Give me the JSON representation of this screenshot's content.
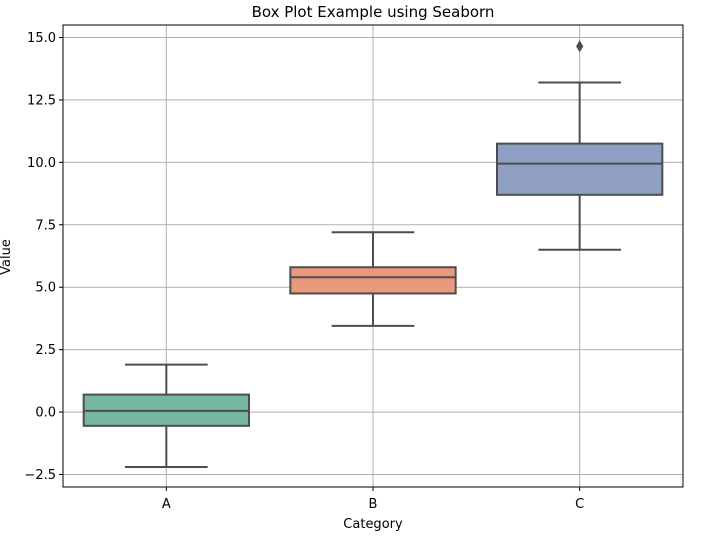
{
  "chart_data": {
    "type": "box",
    "title": "Box Plot Example using Seaborn",
    "xlabel": "Category",
    "ylabel": "Value",
    "categories": [
      "A",
      "B",
      "C"
    ],
    "ylim": [
      -3.0,
      15.5
    ],
    "yticks": [
      -2.5,
      0.0,
      2.5,
      5.0,
      7.5,
      10.0,
      12.5,
      15.0
    ],
    "ytick_labels": [
      "−2.5",
      "0.0",
      "2.5",
      "5.0",
      "7.5",
      "10.0",
      "12.5",
      "15.0"
    ],
    "grid": true,
    "boxes": [
      {
        "category": "A",
        "whisker_low": -2.2,
        "q1": -0.55,
        "median": 0.05,
        "q3": 0.7,
        "whisker_high": 1.9,
        "outliers": [],
        "color": "#77b8a0"
      },
      {
        "category": "B",
        "whisker_low": 3.45,
        "q1": 4.75,
        "median": 5.4,
        "q3": 5.8,
        "whisker_high": 7.2,
        "outliers": [],
        "color": "#e9997d"
      },
      {
        "category": "C",
        "whisker_low": 6.5,
        "q1": 8.7,
        "median": 9.95,
        "q3": 10.75,
        "whisker_high": 13.2,
        "outliers": [
          14.65
        ],
        "color": "#8fa0c4"
      }
    ],
    "colors": {
      "line": "#4d4d4d",
      "grid": "#b0b0b0",
      "axis": "#000000"
    }
  }
}
